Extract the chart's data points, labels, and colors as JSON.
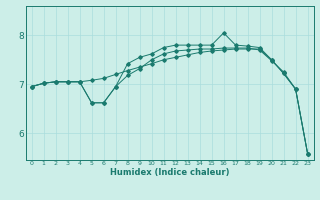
{
  "xlabel": "Humidex (Indice chaleur)",
  "bg_color": "#cceee8",
  "line_color": "#1a7a6e",
  "grid_color": "#aadddd",
  "xlim": [
    -0.5,
    23.5
  ],
  "ylim": [
    5.45,
    8.6
  ],
  "xticks": [
    0,
    1,
    2,
    3,
    4,
    5,
    6,
    7,
    8,
    9,
    10,
    11,
    12,
    13,
    14,
    15,
    16,
    17,
    18,
    19,
    20,
    21,
    22,
    23
  ],
  "yticks": [
    6,
    7,
    8
  ],
  "lines": [
    [
      6.95,
      7.02,
      7.05,
      7.05,
      7.05,
      7.08,
      7.12,
      7.2,
      7.28,
      7.35,
      7.42,
      7.5,
      7.55,
      7.6,
      7.65,
      7.68,
      7.7,
      7.72,
      7.72,
      7.72,
      7.5,
      7.22,
      6.9,
      5.58
    ],
    [
      6.95,
      7.02,
      7.05,
      7.05,
      7.05,
      6.62,
      6.62,
      6.95,
      7.18,
      7.32,
      7.5,
      7.62,
      7.68,
      7.7,
      7.72,
      7.72,
      7.74,
      7.74,
      7.74,
      7.7,
      7.48,
      7.25,
      6.9,
      5.58
    ],
    [
      6.95,
      7.02,
      7.05,
      7.05,
      7.05,
      6.62,
      6.62,
      6.95,
      7.42,
      7.55,
      7.62,
      7.75,
      7.8,
      7.8,
      7.8,
      7.8,
      8.05,
      7.8,
      7.78,
      7.75,
      7.5,
      7.22,
      6.9,
      5.58
    ]
  ]
}
